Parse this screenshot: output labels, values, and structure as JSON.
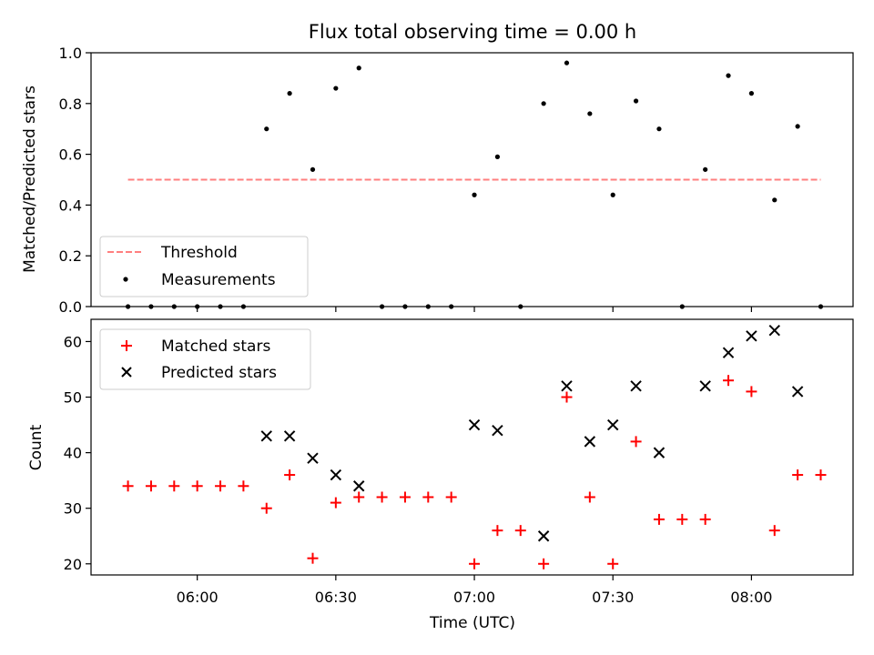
{
  "title": "Flux total observing time = 0.00 h",
  "chart_data": [
    {
      "type": "scatter",
      "ylabel": "Matched/Predicted stars",
      "ylim": [
        0,
        1.0
      ],
      "yticks": [
        "0.0",
        "0.2",
        "0.4",
        "0.6",
        "0.8",
        "1.0"
      ],
      "xlim": [
        "05:37",
        "08:22"
      ],
      "legend_position": "lower-left",
      "threshold": {
        "name": "Threshold",
        "value": 0.5,
        "x_start": "05:45",
        "x_end": "08:15",
        "color": "#ff7f7f"
      },
      "series": [
        {
          "name": "Measurements",
          "color": "#000000",
          "marker": "dot",
          "x": [
            "05:45",
            "05:50",
            "05:55",
            "06:00",
            "06:05",
            "06:10",
            "06:15",
            "06:20",
            "06:25",
            "06:30",
            "06:35",
            "06:40",
            "06:45",
            "06:50",
            "06:55",
            "07:00",
            "07:05",
            "07:10",
            "07:15",
            "07:20",
            "07:25",
            "07:30",
            "07:35",
            "07:40",
            "07:45",
            "07:50",
            "07:55",
            "08:00",
            "08:05",
            "08:10",
            "08:15"
          ],
          "y": [
            0,
            0,
            0,
            0,
            0,
            0,
            0.7,
            0.84,
            0.54,
            0.86,
            0.94,
            0,
            0,
            0,
            0,
            0.44,
            0.59,
            0,
            0.8,
            0.96,
            0.76,
            0.44,
            0.81,
            0.7,
            0,
            0.54,
            0.91,
            0.84,
            0.42,
            0.71,
            0
          ]
        }
      ]
    },
    {
      "type": "scatter",
      "xlabel": "Time (UTC)",
      "ylabel": "Count",
      "ylim": [
        18,
        64
      ],
      "yticks": [
        "20",
        "30",
        "40",
        "50",
        "60"
      ],
      "xticks": [
        "06:00",
        "06:30",
        "07:00",
        "07:30",
        "08:00"
      ],
      "xlim": [
        "05:37",
        "08:22"
      ],
      "legend_position": "upper-left",
      "series": [
        {
          "name": "Matched stars",
          "color": "#ff0000",
          "marker": "plus",
          "x": [
            "05:45",
            "05:50",
            "05:55",
            "06:00",
            "06:05",
            "06:10",
            "06:15",
            "06:20",
            "06:25",
            "06:30",
            "06:35",
            "06:40",
            "06:45",
            "06:50",
            "06:55",
            "07:00",
            "07:05",
            "07:10",
            "07:15",
            "07:20",
            "07:25",
            "07:30",
            "07:35",
            "07:40",
            "07:45",
            "07:50",
            "07:55",
            "08:00",
            "08:05",
            "08:10",
            "08:15"
          ],
          "y": [
            34,
            34,
            34,
            34,
            34,
            34,
            30,
            36,
            21,
            31,
            32,
            32,
            32,
            32,
            32,
            20,
            26,
            26,
            20,
            50,
            32,
            20,
            42,
            28,
            28,
            28,
            53,
            51,
            26,
            36,
            36
          ]
        },
        {
          "name": "Predicted stars",
          "color": "#000000",
          "marker": "x",
          "x": [
            "06:15",
            "06:20",
            "06:25",
            "06:30",
            "06:35",
            "07:00",
            "07:05",
            "07:15",
            "07:20",
            "07:25",
            "07:30",
            "07:35",
            "07:40",
            "07:50",
            "07:55",
            "08:00",
            "08:05",
            "08:10"
          ],
          "y": [
            43,
            43,
            39,
            36,
            34,
            45,
            44,
            25,
            52,
            42,
            45,
            52,
            40,
            52,
            58,
            61,
            62,
            51
          ]
        }
      ]
    }
  ]
}
